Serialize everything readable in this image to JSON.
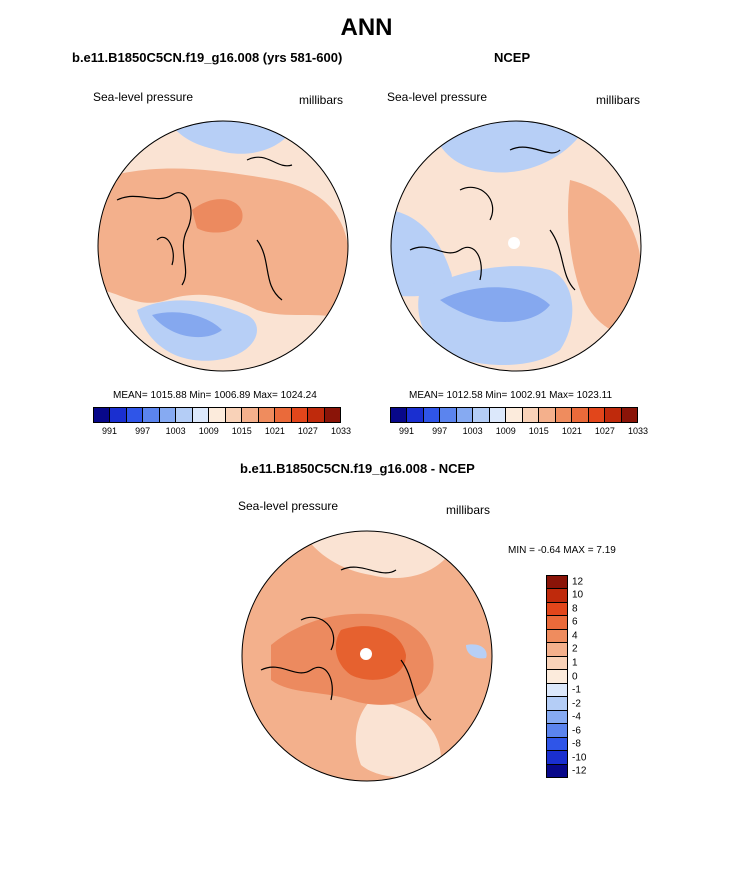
{
  "title": "ANN",
  "panels": {
    "model": {
      "title": "b.e11.B1850C5CN.f19_g16.008 (yrs 581-600)",
      "left_label": "Sea-level pressure",
      "right_label": "millibars",
      "stats": "MEAN= 1015.88  Min= 1006.89  Max= 1024.24"
    },
    "obs": {
      "title": "NCEP",
      "left_label": "Sea-level pressure",
      "right_label": "millibars",
      "stats": "MEAN= 1012.58  Min= 1002.91  Max= 1023.11"
    },
    "diff": {
      "title": "b.e11.B1850C5CN.f19_g16.008 - NCEP",
      "left_label": "Sea-level pressure",
      "right_label": "millibars",
      "stats": "MIN =  -0.64 MAX =   7.19"
    }
  },
  "colorbar_abs": {
    "colors": [
      "#08088a",
      "#1a2fd0",
      "#2f55e8",
      "#5b84ee",
      "#86aaf2",
      "#b4cdf6",
      "#dce8fb",
      "#fcebdc",
      "#f9d2b8",
      "#f4b08c",
      "#ef8c5e",
      "#ea6a3a",
      "#e2461b",
      "#bf2a0c",
      "#8a1408"
    ],
    "tick_labels": [
      "991",
      "997",
      "1003",
      "1009",
      "1015",
      "1021",
      "1027",
      "1033"
    ]
  },
  "colorbar_diff": {
    "colors": [
      "#8a1408",
      "#bf2a0c",
      "#e2461b",
      "#ea6a3a",
      "#ef8c5e",
      "#f4b08c",
      "#f9d2b8",
      "#fcebdc",
      "#dce8fb",
      "#b4cdf6",
      "#86aaf2",
      "#5b84ee",
      "#2f55e8",
      "#1a2fd0",
      "#08088a"
    ],
    "tick_labels": [
      "12",
      "10",
      "8",
      "6",
      "4",
      "2",
      "1",
      "0",
      "-1",
      "-2",
      "-4",
      "-6",
      "-8",
      "-10",
      "-12"
    ]
  },
  "palette": {
    "ocean_light": "#fae3d3",
    "warm": "#f3b08c",
    "warmer": "#ec8a5f",
    "hot": "#e6612f",
    "cool": "#b7cff6",
    "cooler": "#85a8ef",
    "coast": "#000000",
    "pole_marker": "#ffffff"
  }
}
